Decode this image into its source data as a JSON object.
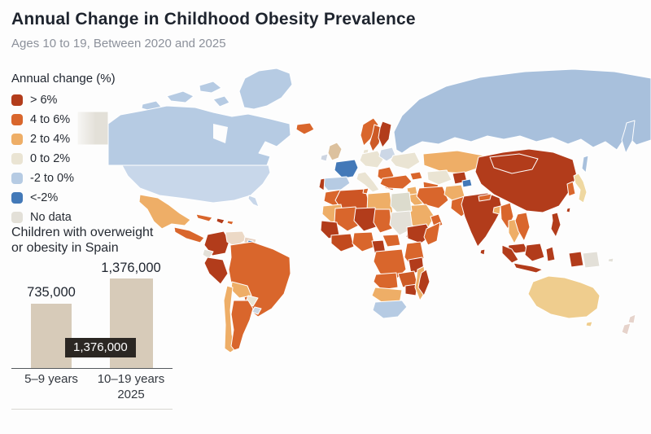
{
  "chart_data": [
    {
      "type": "choropleth",
      "title": "Annual Change in Childhood Obesity Prevalence",
      "subtitle": "Ages 10 to 19, Between 2020 and 2025",
      "legend": {
        "title": "Annual change (%)",
        "items": [
          {
            "key": "gt6",
            "label": "> 6%",
            "color": "#b23c1b"
          },
          {
            "key": "4to6",
            "label": "4 to 6%",
            "color": "#d9662c"
          },
          {
            "key": "2to4",
            "label": "2 to 4%",
            "color": "#eeae67"
          },
          {
            "key": "0to2",
            "label": "0 to 2%",
            "color": "#eae4d3"
          },
          {
            "key": "n2to0",
            "label": "-2 to 0%",
            "color": "#b6cbe3"
          },
          {
            "key": "ltn2",
            "label": "<-2%",
            "color": "#4379b8"
          },
          {
            "key": "nodata",
            "label": "No data",
            "color": "#e3e0d8"
          }
        ]
      },
      "regions": {
        "greenland": {
          "c": "n2to0"
        },
        "arctic1": {
          "c": "n2to0"
        },
        "arctic2": {
          "c": "n2to0"
        },
        "arctic3": {
          "c": "n2to0"
        },
        "arctic4": {
          "c": "n2to0"
        },
        "canada": {
          "c": "n2to0"
        },
        "alaska": {
          "c": "nodata"
        },
        "usa": {
          "c": "n2to0",
          "t": "#c8d7ea"
        },
        "mexico": {
          "c": "2to4"
        },
        "central_america": {
          "c": "4to6"
        },
        "cuba": {
          "c": "4to6"
        },
        "hispaniola": {
          "c": "gt6"
        },
        "antilles": {
          "c": "4to6"
        },
        "colombia": {
          "c": "gt6"
        },
        "venezuela": {
          "c": "0to2",
          "t": "#ecd9c6"
        },
        "guyanas": {
          "c": "2to4",
          "t": "#e7d2c2"
        },
        "suriname": {
          "c": "ltn2"
        },
        "ecuador": {
          "c": "nodata"
        },
        "peru": {
          "c": "gt6"
        },
        "brazil": {
          "c": "4to6"
        },
        "bolivia": {
          "c": "2to4"
        },
        "paraguay": {
          "c": "0to2"
        },
        "uruguay": {
          "c": "n2to0",
          "t": "#ccd4de"
        },
        "chile": {
          "c": "2to4"
        },
        "argentina": {
          "c": "4to6"
        },
        "iceland": {
          "c": "4to6"
        },
        "norway": {
          "c": "4to6"
        },
        "sweden": {
          "c": "4to6",
          "t": "#cd5a26"
        },
        "finland": {
          "c": "gt6"
        },
        "uk": {
          "c": "2to4",
          "t": "#dcc19e"
        },
        "ireland": {
          "c": "n2to0",
          "t": "#cdd5e1"
        },
        "denmark": {
          "c": "0to2"
        },
        "france": {
          "c": "ltn2"
        },
        "spain": {
          "c": "n2to0"
        },
        "portugal": {
          "c": "gt6"
        },
        "germany": {
          "c": "0to2"
        },
        "poland": {
          "c": "n2to0",
          "t": "#ccd7e6"
        },
        "ukraine": {
          "c": "0to2"
        },
        "italy": {
          "c": "0to2"
        },
        "balkans": {
          "c": "4to6"
        },
        "greece": {
          "c": "4to6"
        },
        "russia": {
          "c": "n2to0",
          "t": "#a8c0dc"
        },
        "kamchatka": {
          "c": "n2to0",
          "t": "#a8c0dc"
        },
        "sakhalin": {
          "c": "n2to0",
          "t": "#a8c0dc"
        },
        "kazakhstan": {
          "c": "2to4"
        },
        "uzbekistan": {
          "c": "0to2"
        },
        "turkmenistan": {
          "c": "4to6"
        },
        "kyrgyzstan": {
          "c": "gt6"
        },
        "lake_balkhash": {
          "c": "ltn2"
        },
        "caucasus": {
          "c": "4to6"
        },
        "turkey": {
          "c": "4to6"
        },
        "syria": {
          "c": "2to4"
        },
        "iraq": {
          "c": "2to4"
        },
        "iran": {
          "c": "4to6"
        },
        "afghanistan": {
          "c": "2to4"
        },
        "pakistan": {
          "c": "4to6"
        },
        "saudi_arabia": {
          "c": "2to4"
        },
        "yemen": {
          "c": "gt6"
        },
        "oman": {
          "c": "4to6"
        },
        "india": {
          "c": "gt6"
        },
        "sri_lanka": {
          "c": "gt6"
        },
        "nepal": {
          "c": "4to6"
        },
        "bangladesh": {
          "c": "2to4"
        },
        "myanmar": {
          "c": "4to6"
        },
        "thailand": {
          "c": "2to4"
        },
        "vietnam": {
          "c": "4to6"
        },
        "malaysia": {
          "c": "gt6"
        },
        "china": {
          "c": "gt6"
        },
        "mongolia": {
          "c": "gt6"
        },
        "south_korea": {
          "c": "4to6"
        },
        "japan": {
          "c": "0to2",
          "t": "#efd8a1"
        },
        "taiwan": {
          "c": "gt6"
        },
        "philippines": {
          "c": "gt6"
        },
        "morocco": {
          "c": "4to6"
        },
        "algeria": {
          "c": "4to6",
          "t": "#cd5524"
        },
        "tunisia": {
          "c": "4to6"
        },
        "libya": {
          "c": "2to4"
        },
        "egypt": {
          "c": "0to2",
          "t": "#dcdbcd"
        },
        "mauritania": {
          "c": "2to4"
        },
        "mali": {
          "c": "4to6"
        },
        "niger": {
          "c": "gt6"
        },
        "chad": {
          "c": "4to6"
        },
        "sudan": {
          "c": "nodata"
        },
        "ethiopia": {
          "c": "gt6"
        },
        "somalia": {
          "c": "4to6"
        },
        "guinea": {
          "c": "gt6"
        },
        "ghana": {
          "c": "4to6",
          "t": "#c24a1e"
        },
        "nigeria": {
          "c": "4to6"
        },
        "cameroon": {
          "c": "gt6"
        },
        "car": {
          "c": "4to6"
        },
        "drc": {
          "c": "4to6"
        },
        "kenya": {
          "c": "4to6"
        },
        "tanzania": {
          "c": "gt6"
        },
        "angola": {
          "c": "4to6"
        },
        "zambia": {
          "c": "4to6",
          "t": "#cd5a26"
        },
        "zimbabwe": {
          "c": "gt6"
        },
        "mozambique": {
          "c": "2to4"
        },
        "madagascar": {
          "c": "gt6"
        },
        "namibia": {
          "c": "2to4"
        },
        "south_africa": {
          "c": "n2to0"
        },
        "sumatra": {
          "c": "gt6"
        },
        "java": {
          "c": "gt6"
        },
        "borneo": {
          "c": "gt6"
        },
        "sulawesi": {
          "c": "gt6"
        },
        "west_papua": {
          "c": "gt6"
        },
        "papua_new_guinea": {
          "c": "nodata"
        },
        "pacific_islands": {
          "c": "nodata"
        },
        "australia": {
          "c": "2to4",
          "t": "#efcd8e"
        },
        "tasmania": {
          "c": "2to4",
          "t": "#efcd8e"
        },
        "new_zealand": {
          "c": "0to2",
          "t": "#e6d3cb"
        }
      }
    },
    {
      "type": "bar",
      "title": "Children with overweight or obesity in Spain",
      "categories": [
        "5–9 years",
        "10–19 years"
      ],
      "values": [
        735000,
        1376000
      ],
      "value_labels": [
        "735,000",
        "1,376,000"
      ],
      "year_label": "2025",
      "tooltip": "1,376,000",
      "bar_color": "#d7cbb9",
      "ylim": [
        0,
        1376000
      ]
    }
  ]
}
